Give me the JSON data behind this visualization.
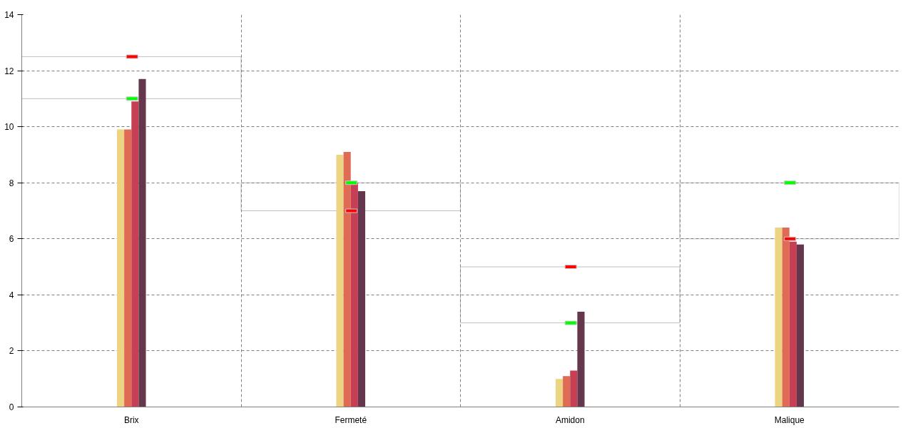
{
  "chart_data": {
    "type": "bar",
    "categories": [
      "Brix",
      "Fermeté",
      "Amidon",
      "Malique"
    ],
    "series": [
      {
        "base": [
          11,
          7,
          3,
          6
        ],
        "values": [
          1.5,
          1,
          2,
          2
        ],
        "color": "#c0c0c0"
      },
      {
        "color": "#edd482",
        "values": [
          9.9,
          9.0,
          1.0,
          6.4
        ]
      },
      {
        "color": "#df6b55",
        "values": [
          9.9,
          9.1,
          1.1,
          6.4
        ]
      },
      {
        "color": "#c63f55",
        "values": [
          10.9,
          8.0,
          1.3,
          5.9
        ]
      },
      {
        "color": "#65374d",
        "values": [
          11.7,
          7.7,
          3.4,
          5.8
        ]
      },
      {
        "type": "scatter",
        "color": "#ff0000",
        "values": [
          12.5,
          7,
          5,
          6
        ]
      },
      {
        "type": "scatter",
        "color": "#00ff00",
        "values": [
          11,
          8,
          3,
          8
        ]
      }
    ],
    "ylim": [
      0,
      14
    ],
    "yticks": [
      0,
      2,
      4,
      6,
      8,
      10,
      12,
      14
    ],
    "grid": true
  }
}
